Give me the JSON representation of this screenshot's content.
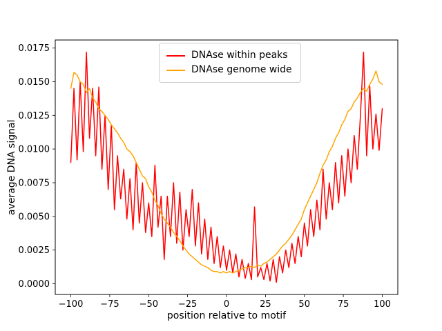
{
  "figure": {
    "background": "#ffffff"
  },
  "chart_data": {
    "type": "line",
    "title": "",
    "xlabel": "position relative to motif",
    "ylabel": "average DNA signal",
    "grid": false,
    "legend_position": "upper center",
    "xlim": [
      -110,
      110
    ],
    "ylim": [
      -0.0008,
      0.0181
    ],
    "x_tick_values": [
      -100,
      -75,
      -50,
      -25,
      0,
      25,
      50,
      75,
      100
    ],
    "x_tick_labels": [
      "−100",
      "−75",
      "−50",
      "−25",
      "0",
      "25",
      "50",
      "75",
      "100"
    ],
    "y_tick_values": [
      0.0,
      0.0025,
      0.005,
      0.0075,
      0.01,
      0.0125,
      0.015,
      0.0175
    ],
    "y_tick_labels": [
      "0.0000",
      "0.0025",
      "0.0050",
      "0.0075",
      "0.0100",
      "0.0125",
      "0.0150",
      "0.0175"
    ],
    "x": [
      -100,
      -98,
      -96,
      -94,
      -92,
      -90,
      -88,
      -86,
      -84,
      -82,
      -80,
      -78,
      -76,
      -74,
      -72,
      -70,
      -68,
      -66,
      -64,
      -62,
      -60,
      -58,
      -56,
      -54,
      -52,
      -50,
      -48,
      -46,
      -44,
      -42,
      -40,
      -38,
      -36,
      -34,
      -32,
      -30,
      -28,
      -26,
      -24,
      -22,
      -20,
      -18,
      -16,
      -14,
      -12,
      -10,
      -8,
      -6,
      -4,
      -2,
      0,
      2,
      4,
      6,
      8,
      10,
      12,
      14,
      16,
      18,
      20,
      22,
      24,
      26,
      28,
      30,
      32,
      34,
      36,
      38,
      40,
      42,
      44,
      46,
      48,
      50,
      52,
      54,
      56,
      58,
      60,
      62,
      64,
      66,
      68,
      70,
      72,
      74,
      76,
      78,
      80,
      82,
      84,
      86,
      88,
      90,
      92,
      94,
      96,
      98,
      100
    ],
    "series": [
      {
        "name": "DNAse within peaks",
        "color": "#ff0000",
        "values": [
          0.009,
          0.0145,
          0.0092,
          0.015,
          0.0098,
          0.0172,
          0.0108,
          0.0145,
          0.0095,
          0.0146,
          0.0085,
          0.0125,
          0.007,
          0.0118,
          0.0055,
          0.0095,
          0.0063,
          0.0085,
          0.0048,
          0.0078,
          0.004,
          0.009,
          0.0045,
          0.0075,
          0.0038,
          0.006,
          0.0035,
          0.0088,
          0.0042,
          0.0065,
          0.0018,
          0.0065,
          0.0035,
          0.0075,
          0.003,
          0.0068,
          0.0025,
          0.0055,
          0.0035,
          0.007,
          0.0028,
          0.006,
          0.0022,
          0.0048,
          0.0018,
          0.0042,
          0.0015,
          0.0035,
          0.0012,
          0.0028,
          0.001,
          0.0025,
          0.0008,
          0.0022,
          0.0005,
          0.0018,
          0.0004,
          0.0015,
          0.0003,
          0.0057,
          0.0005,
          0.0012,
          0.0003,
          0.0015,
          0.0002,
          0.0018,
          0.0001,
          0.002,
          0.0008,
          0.0025,
          0.0012,
          0.003,
          0.0015,
          0.0035,
          0.002,
          0.0045,
          0.0028,
          0.0055,
          0.0035,
          0.0062,
          0.004,
          0.0085,
          0.0048,
          0.0075,
          0.0055,
          0.009,
          0.006,
          0.0095,
          0.0065,
          0.01,
          0.0075,
          0.011,
          0.0085,
          0.0125,
          0.0172,
          0.0095,
          0.0147,
          0.01,
          0.0126,
          0.0099,
          0.013
        ]
      },
      {
        "name": "DNAse genome wide",
        "color": "#ffa500",
        "values": [
          0.0145,
          0.0157,
          0.0155,
          0.015,
          0.0148,
          0.0142,
          0.0145,
          0.0138,
          0.0135,
          0.013,
          0.0128,
          0.0125,
          0.0122,
          0.0118,
          0.0115,
          0.0112,
          0.0108,
          0.0105,
          0.01,
          0.0098,
          0.0095,
          0.009,
          0.0085,
          0.008,
          0.0078,
          0.0072,
          0.0068,
          0.0062,
          0.0058,
          0.0052,
          0.0048,
          0.0045,
          0.0042,
          0.0038,
          0.0035,
          0.0032,
          0.0028,
          0.0025,
          0.0022,
          0.002,
          0.0018,
          0.0016,
          0.0014,
          0.0013,
          0.0012,
          0.001,
          0.0009,
          0.0009,
          0.0008,
          0.0009,
          0.0008,
          0.0009,
          0.0008,
          0.0009,
          0.001,
          0.0011,
          0.0012,
          0.0012,
          0.0013,
          0.0012,
          0.0014,
          0.0013,
          0.0015,
          0.0016,
          0.0018,
          0.002,
          0.0022,
          0.0025,
          0.0028,
          0.003,
          0.0033,
          0.0036,
          0.004,
          0.0044,
          0.0048,
          0.0055,
          0.006,
          0.0065,
          0.007,
          0.0075,
          0.0082,
          0.0088,
          0.0092,
          0.0098,
          0.0102,
          0.0108,
          0.0112,
          0.0118,
          0.0122,
          0.0128,
          0.013,
          0.0135,
          0.0138,
          0.0142,
          0.0145,
          0.0143,
          0.0148,
          0.0152,
          0.0158,
          0.015,
          0.0148
        ]
      }
    ]
  },
  "legend": {
    "entries": [
      {
        "label": "DNAse within peaks",
        "color": "#ff0000"
      },
      {
        "label": "DNAse genome wide",
        "color": "#ffa500"
      }
    ]
  }
}
